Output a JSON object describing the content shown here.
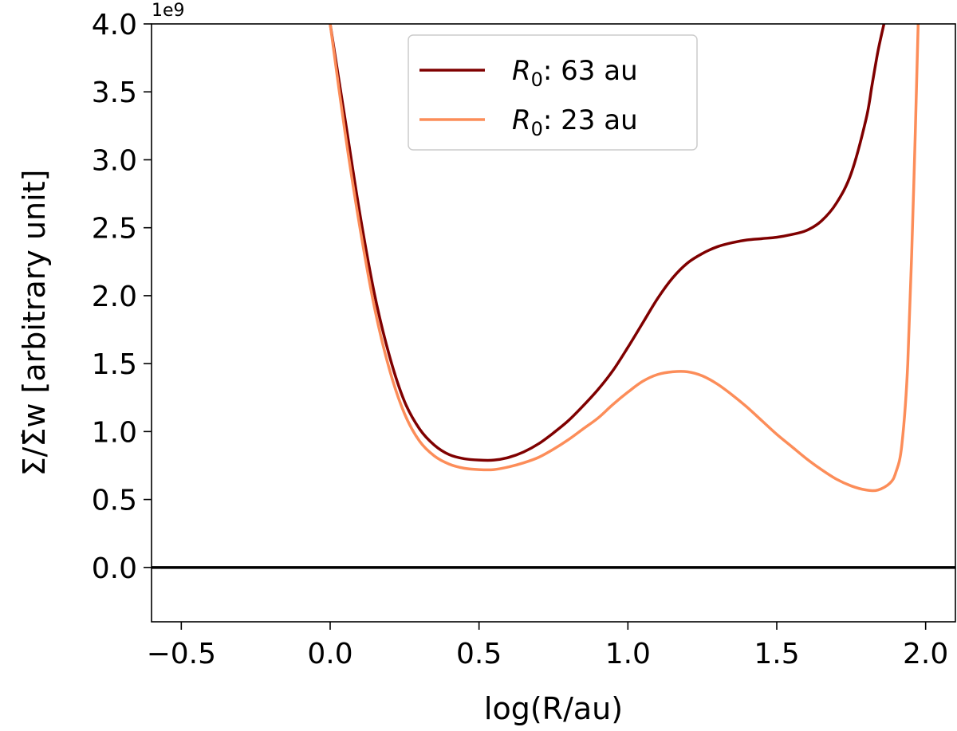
{
  "chart_data": {
    "type": "line",
    "xlabel": "log(R/au)",
    "ylabel": "Σ/Σ̇w [arbitrary unit]",
    "y_offset_label": "1e9",
    "xlim": [
      -0.6,
      2.1
    ],
    "ylim": [
      -0.4,
      4.0
    ],
    "x_ticks": [
      -0.5,
      0.0,
      0.5,
      1.0,
      1.5,
      2.0
    ],
    "x_tick_labels": [
      "−0.5",
      "0.0",
      "0.5",
      "1.0",
      "1.5",
      "2.0"
    ],
    "y_ticks": [
      0.0,
      0.5,
      1.0,
      1.5,
      2.0,
      2.5,
      3.0,
      3.5,
      4.0
    ],
    "y_tick_labels": [
      "0.0",
      "0.5",
      "1.0",
      "1.5",
      "2.0",
      "2.5",
      "3.0",
      "3.5",
      "4.0"
    ],
    "grid": false,
    "legend_position": "top-center",
    "reference_line": {
      "y": 0.0,
      "color": "#000000"
    },
    "series": [
      {
        "name": "R0: 63 au",
        "legend_symbol": "R",
        "legend_subscript": "0",
        "legend_rest": ": 63 au",
        "color": "#7f0000",
        "x": [
          0.0,
          0.05,
          0.1,
          0.15,
          0.2,
          0.25,
          0.3,
          0.35,
          0.4,
          0.45,
          0.5,
          0.55,
          0.6,
          0.65,
          0.7,
          0.75,
          0.8,
          0.85,
          0.9,
          0.95,
          1.0,
          1.05,
          1.1,
          1.15,
          1.2,
          1.25,
          1.3,
          1.35,
          1.4,
          1.45,
          1.5,
          1.55,
          1.6,
          1.65,
          1.7,
          1.75,
          1.8,
          1.82,
          1.84,
          1.86
        ],
        "y": [
          4.0,
          3.3,
          2.6,
          2.0,
          1.55,
          1.22,
          1.02,
          0.9,
          0.83,
          0.8,
          0.79,
          0.79,
          0.81,
          0.85,
          0.91,
          0.99,
          1.08,
          1.19,
          1.31,
          1.45,
          1.62,
          1.8,
          1.98,
          2.13,
          2.24,
          2.31,
          2.36,
          2.39,
          2.41,
          2.42,
          2.43,
          2.45,
          2.48,
          2.55,
          2.68,
          2.9,
          3.3,
          3.55,
          3.8,
          4.0
        ]
      },
      {
        "name": "R0: 23 au",
        "legend_symbol": "R",
        "legend_subscript": "0",
        "legend_rest": ": 23 au",
        "color": "#fc8d59",
        "x": [
          0.0,
          0.05,
          0.1,
          0.15,
          0.2,
          0.25,
          0.3,
          0.35,
          0.4,
          0.45,
          0.5,
          0.55,
          0.6,
          0.65,
          0.7,
          0.75,
          0.8,
          0.85,
          0.9,
          0.95,
          1.0,
          1.05,
          1.1,
          1.15,
          1.2,
          1.25,
          1.3,
          1.35,
          1.4,
          1.45,
          1.5,
          1.55,
          1.6,
          1.65,
          1.7,
          1.75,
          1.8,
          1.84,
          1.88,
          1.9,
          1.92,
          1.94,
          1.96,
          1.975
        ],
        "y": [
          4.0,
          3.2,
          2.5,
          1.9,
          1.45,
          1.13,
          0.93,
          0.82,
          0.76,
          0.73,
          0.72,
          0.72,
          0.74,
          0.77,
          0.81,
          0.87,
          0.94,
          1.02,
          1.1,
          1.2,
          1.29,
          1.37,
          1.42,
          1.44,
          1.44,
          1.41,
          1.35,
          1.27,
          1.18,
          1.08,
          0.98,
          0.89,
          0.8,
          0.72,
          0.65,
          0.6,
          0.57,
          0.57,
          0.62,
          0.7,
          0.9,
          1.5,
          2.8,
          4.0
        ]
      }
    ]
  }
}
